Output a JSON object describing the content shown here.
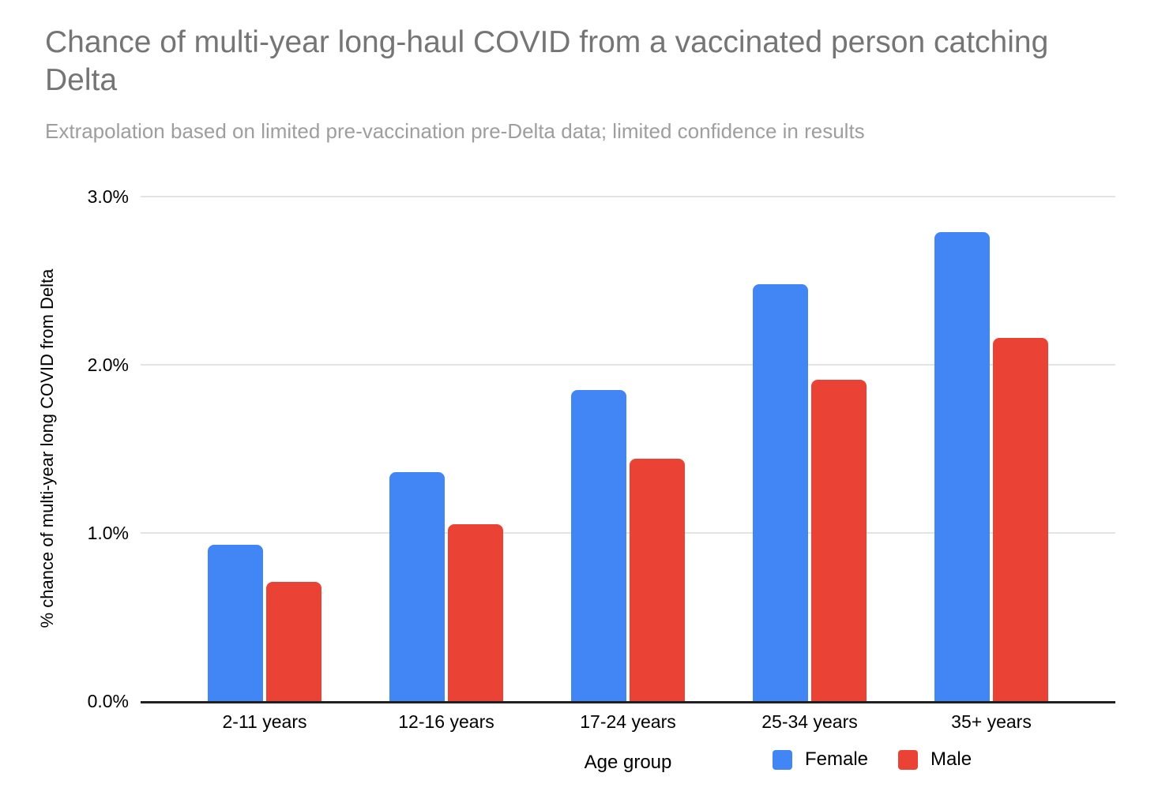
{
  "chart_data": {
    "type": "bar",
    "title": "Chance of multi-year long-haul COVID from a vaccinated person catching Delta",
    "subtitle": "Extrapolation based on limited pre-vaccination pre-Delta data; limited confidence in results",
    "categories": [
      "2-11 years",
      "12-16 years",
      "17-24 years",
      "25-34 years",
      "35+ years"
    ],
    "series": [
      {
        "name": "Female",
        "color": "#4285F4",
        "values": [
          0.93,
          1.36,
          1.85,
          2.48,
          2.79
        ]
      },
      {
        "name": "Male",
        "color": "#EA4335",
        "values": [
          0.71,
          1.05,
          1.44,
          1.91,
          2.16
        ]
      }
    ],
    "xlabel": "Age group",
    "ylabel": "% chance of multi-year long COVID from Delta",
    "ylim": [
      0,
      3
    ],
    "yticks": [
      "0.0%",
      "1.0%",
      "2.0%",
      "3.0%"
    ],
    "grid": true,
    "legend_position": "bottom",
    "colors": {
      "title_text": "#757575",
      "subtitle_text": "#9E9E9E",
      "axis_text": "#000000",
      "gridline": "#E3E3E3",
      "axis_line": "#212121"
    }
  }
}
